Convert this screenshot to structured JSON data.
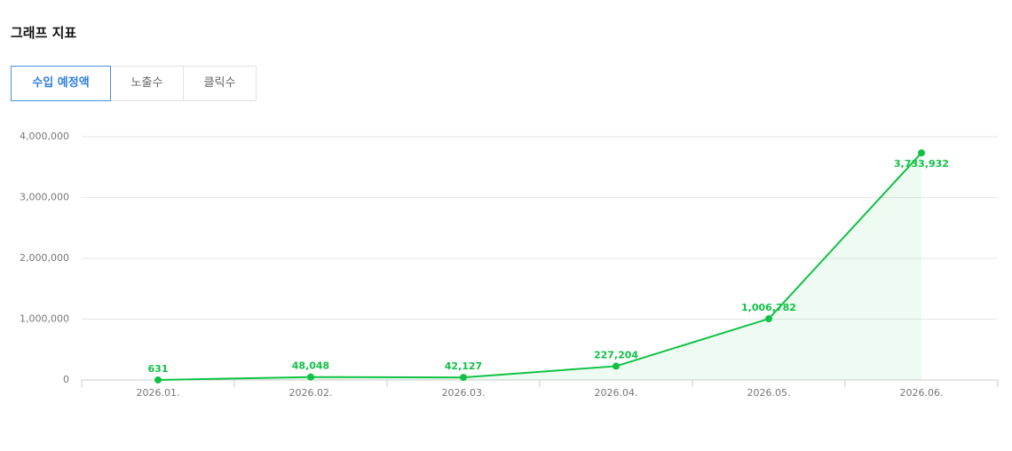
{
  "title": "그래프 지표",
  "tabs": [
    "수입 예정액",
    "노출수",
    "클릭수"
  ],
  "active_tab": 0,
  "chart_data": {
    "type": "line",
    "categories": [
      "2026.01.",
      "2026.02.",
      "2026.03.",
      "2026.04.",
      "2026.05.",
      "2026.06."
    ],
    "values": [
      631,
      48048,
      42127,
      227204,
      1006782,
      3733932
    ],
    "value_labels": [
      "631",
      "48,048",
      "42,127",
      "227,204",
      "1,006,782",
      "3,733,932"
    ],
    "color": "#0fc244",
    "area": true,
    "ylim": [
      0,
      4000000
    ],
    "yticks": [
      0,
      {
        "value": 1000000,
        "label": "1,000,000"
      },
      {
        "value": 2000000,
        "label": "2,000,000"
      },
      {
        "value": 3000000,
        "label": "3,000,000"
      },
      {
        "value": 4000000,
        "label": "4,000,000"
      }
    ],
    "grid": true
  }
}
